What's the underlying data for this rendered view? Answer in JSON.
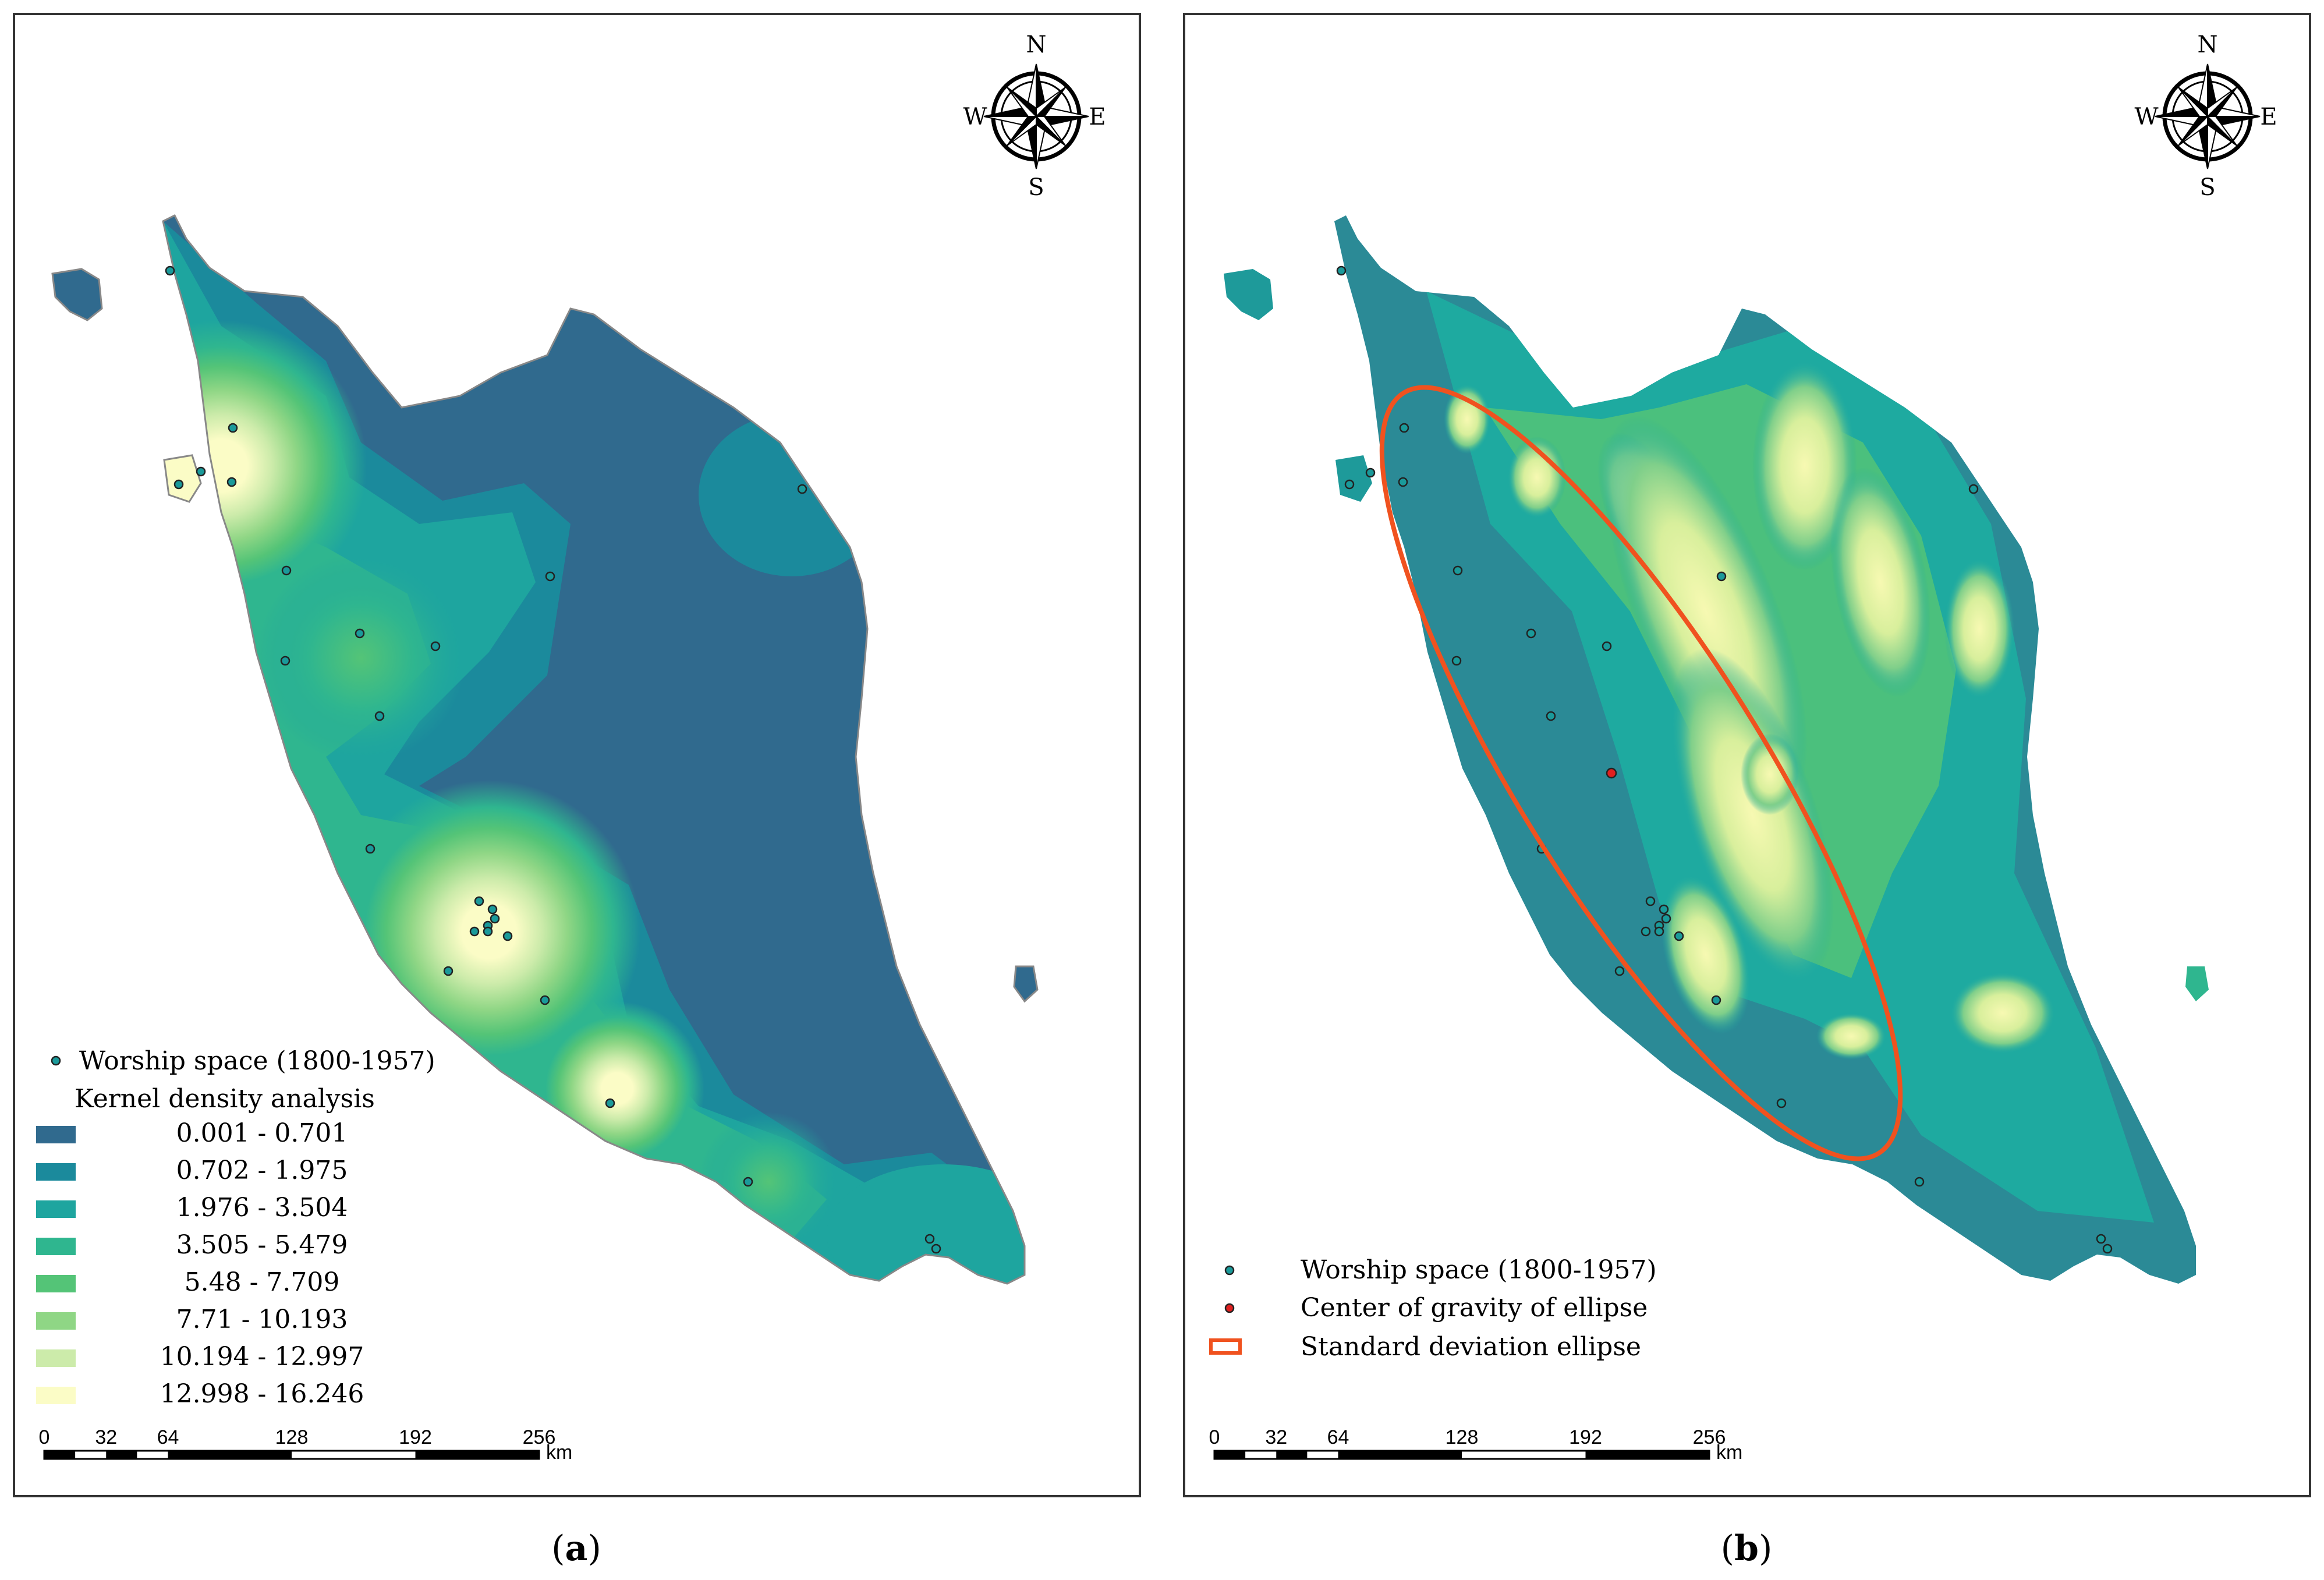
{
  "panel_a": {
    "caption_open": "(",
    "caption_letter": "a",
    "caption_close": ")",
    "compass": {
      "n": "N",
      "e": "E",
      "s": "S",
      "w": "W"
    },
    "legend": {
      "points_label": "Worship space (1800-1957)",
      "kernel_title": "Kernel density analysis",
      "classes": [
        {
          "label": "0.001 - 0.701",
          "color": "#306a8e"
        },
        {
          "label": "0.702 - 1.975",
          "color": "#1b8a9c"
        },
        {
          "label": "1.976 - 3.504",
          "color": "#1ea59f"
        },
        {
          "label": "3.505 - 5.479",
          "color": "#2fb68f"
        },
        {
          "label": "5.48 - 7.709",
          "color": "#54c477"
        },
        {
          "label": "7.71 - 10.193",
          "color": "#8fd685"
        },
        {
          "label": "10.194 - 12.997",
          "color": "#ccebaa"
        },
        {
          "label": "12.998 - 16.246",
          "color": "#fbfcc6"
        }
      ]
    },
    "scale": {
      "ticks": [
        "0",
        "32",
        "64",
        "128",
        "192",
        "256"
      ],
      "unit": "km"
    }
  },
  "panel_b": {
    "caption_open": "(",
    "caption_letter": "b",
    "caption_close": ")",
    "compass": {
      "n": "N",
      "e": "E",
      "s": "S",
      "w": "W"
    },
    "legend": {
      "points_label": "Worship space (1800-1957)",
      "center_label": "Center of gravity of ellipse",
      "ellipse_label": "Standard deviation ellipse"
    },
    "scale": {
      "ticks": [
        "0",
        "32",
        "64",
        "128",
        "192",
        "256"
      ],
      "unit": "km"
    }
  },
  "colors": {
    "ellipse": "#f0521f",
    "center": "#e02020",
    "point": "#1a9a9a",
    "terrain_low": "#2b8a96",
    "terrain_mid": "#1eaaa0",
    "terrain_high": "#f7f9b2"
  }
}
